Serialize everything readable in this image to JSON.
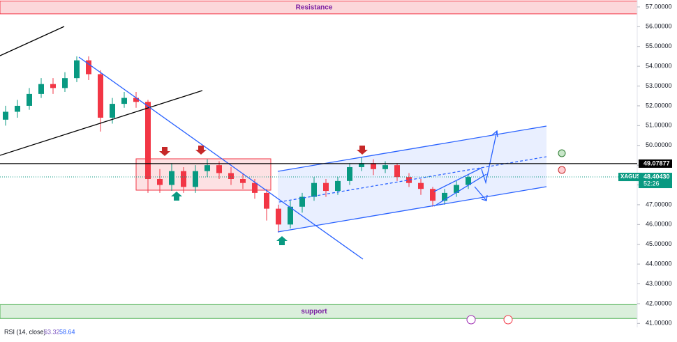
{
  "chart_data": {
    "type": "candlestick",
    "symbol": "XAGUSD",
    "open": [
      51.3,
      51.7,
      52.0,
      52.6,
      53.1,
      52.9,
      53.4,
      54.3,
      53.6,
      51.4,
      52.1,
      52.4,
      52.2,
      48.3,
      48.0,
      48.7,
      47.9,
      48.7,
      49.0,
      48.6,
      48.3,
      48.1,
      47.6,
      46.8,
      46.0,
      46.9,
      47.4,
      48.1,
      47.7,
      48.2,
      48.9,
      49.1,
      48.8,
      49.0,
      48.4,
      48.1,
      47.8,
      47.2,
      47.6,
      48.0
    ],
    "high": [
      52.0,
      52.3,
      52.9,
      53.4,
      53.4,
      53.7,
      54.5,
      54.5,
      53.8,
      52.4,
      52.7,
      52.7,
      52.3,
      48.8,
      49.1,
      48.9,
      49.0,
      49.3,
      49.2,
      48.9,
      48.6,
      48.3,
      47.8,
      47.0,
      47.2,
      47.6,
      48.4,
      48.3,
      48.4,
      49.1,
      49.4,
      49.3,
      49.2,
      49.1,
      48.6,
      48.3,
      47.9,
      47.8,
      48.2,
      48.5
    ],
    "low": [
      51.0,
      51.4,
      51.8,
      52.4,
      52.6,
      52.7,
      53.2,
      53.3,
      50.7,
      51.1,
      51.9,
      51.9,
      47.6,
      47.6,
      47.7,
      47.6,
      47.6,
      48.4,
      48.3,
      48.0,
      47.8,
      47.3,
      46.2,
      45.6,
      45.8,
      46.6,
      47.2,
      47.4,
      47.5,
      48.0,
      48.7,
      48.5,
      48.6,
      48.2,
      47.9,
      47.5,
      46.9,
      47.0,
      47.4,
      47.8
    ],
    "close": [
      51.7,
      52.0,
      52.6,
      53.1,
      52.9,
      53.4,
      54.3,
      53.6,
      51.4,
      52.1,
      52.4,
      52.2,
      48.3,
      48.0,
      48.7,
      47.9,
      48.7,
      49.0,
      48.6,
      48.3,
      48.1,
      47.6,
      46.8,
      46.0,
      46.9,
      47.4,
      48.1,
      47.7,
      48.2,
      48.9,
      49.1,
      48.8,
      49.0,
      48.4,
      48.1,
      47.8,
      47.2,
      47.6,
      48.0,
      48.4
    ],
    "up_color": "#089981",
    "down_color": "#f23645",
    "ylim": [
      40.8,
      57.35
    ],
    "yticks": [
      {
        "value": 41,
        "label": "41.00000"
      },
      {
        "value": 42,
        "label": "42.00000"
      },
      {
        "value": 43,
        "label": "43.00000"
      },
      {
        "value": 44,
        "label": "44.00000"
      },
      {
        "value": 45,
        "label": "45.00000"
      },
      {
        "value": 46,
        "label": "46.00000"
      },
      {
        "value": 47,
        "label": "47.00000"
      },
      {
        "value": 48,
        "label": "48.00000"
      },
      {
        "value": 49,
        "label": "49.00000"
      },
      {
        "value": 50,
        "label": "50.00000"
      },
      {
        "value": 51,
        "label": "51.00000"
      },
      {
        "value": 52,
        "label": "52.00000"
      },
      {
        "value": 53,
        "label": "53.00000"
      },
      {
        "value": 54,
        "label": "54.00000"
      },
      {
        "value": 55,
        "label": "55.00000"
      },
      {
        "value": 56,
        "label": "56.00000"
      },
      {
        "value": 57,
        "label": "57.00000"
      }
    ],
    "zones": [
      {
        "label": "Resistance",
        "low": 56.65,
        "high": 57.3,
        "color": "#f23645"
      },
      {
        "label": "support",
        "low": 41.25,
        "high": 41.95,
        "color": "#4caf50"
      }
    ],
    "level_line": 49.07877,
    "last_price": {
      "value": 48.4043,
      "label": "48.40430"
    },
    "countdown": "52:26",
    "rsi": {
      "label": "RSI (14, close)",
      "values": [
        63.32,
        58.64
      ]
    }
  }
}
